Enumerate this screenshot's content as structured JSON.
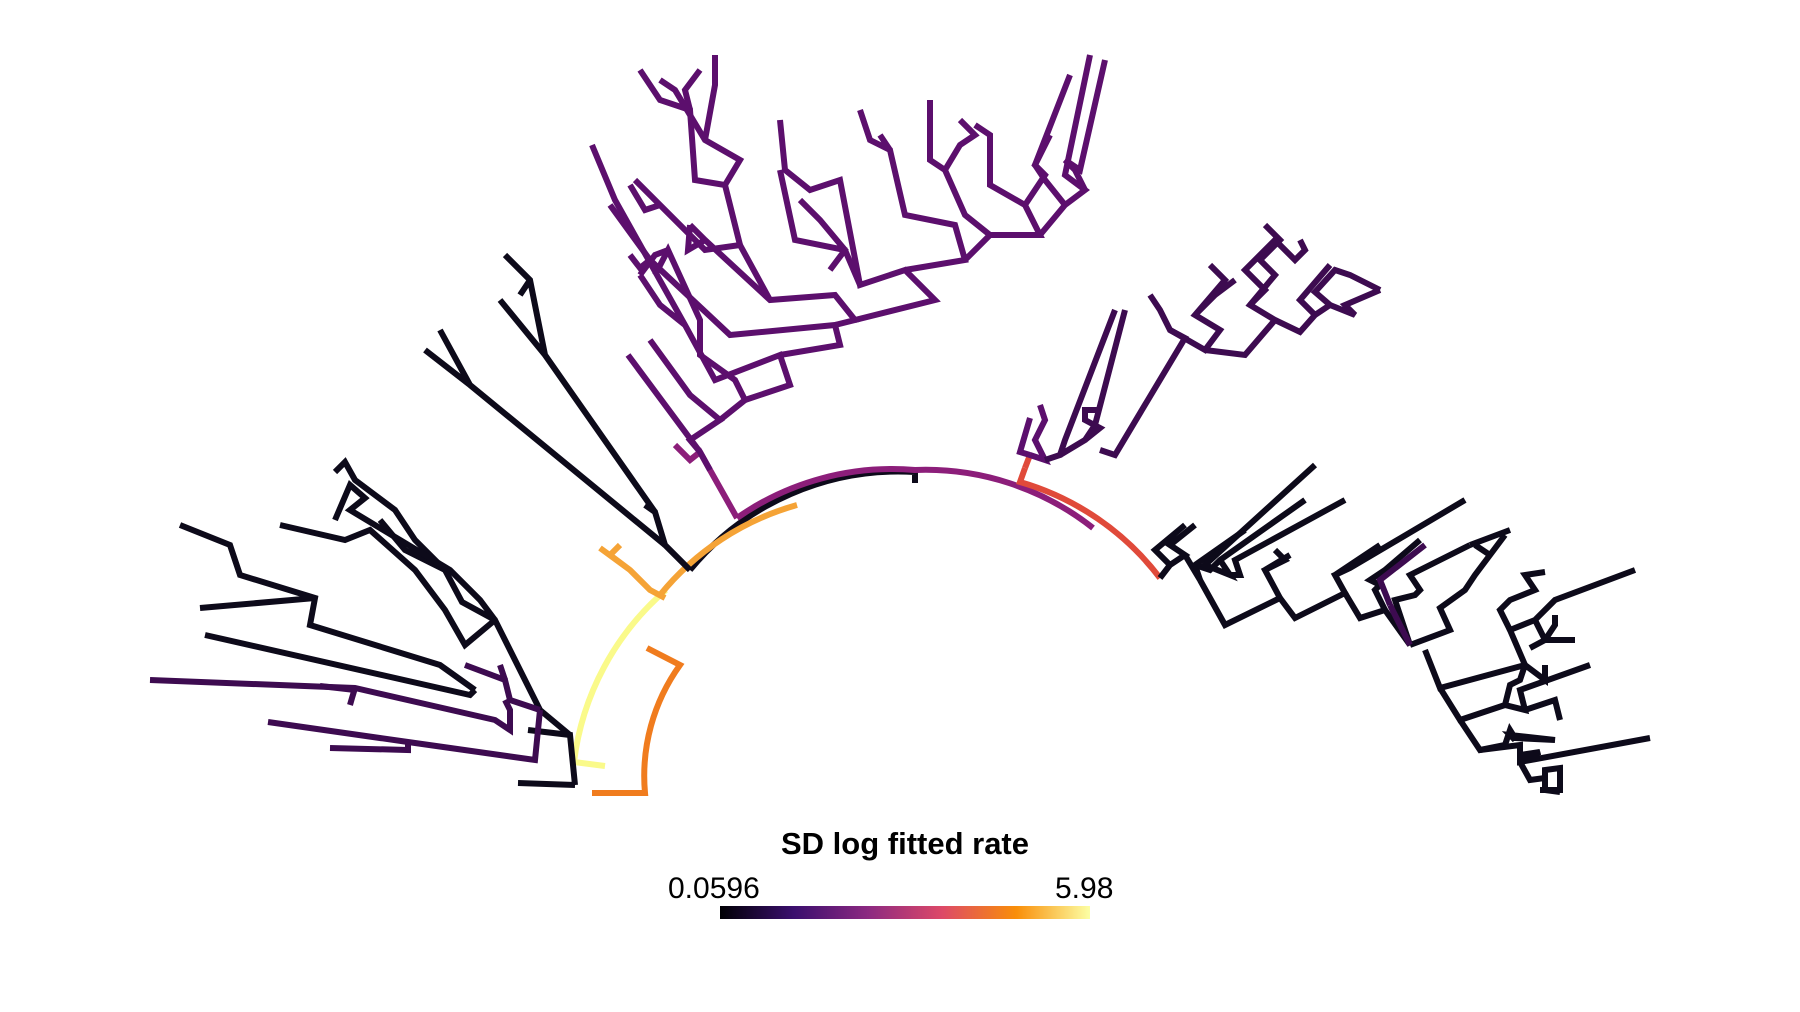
{
  "legend": {
    "title": "SD log fitted rate",
    "min_label": "0.0596",
    "max_label": "5.98",
    "colormap": "inferno",
    "gradient": [
      "#0b0724",
      "#3b0f6e",
      "#8c2981",
      "#dd4968",
      "#f98e09",
      "#fcffa4"
    ]
  },
  "palette": {
    "black": "#0d0a1a",
    "dark_purple": "#3d0b50",
    "purple": "#5c0f6d",
    "magenta": "#8c1e7a",
    "red": "#e04a3a",
    "orange": "#f07c1e",
    "light_orange": "#f5a336",
    "yellow": "#fafa8a"
  }
}
